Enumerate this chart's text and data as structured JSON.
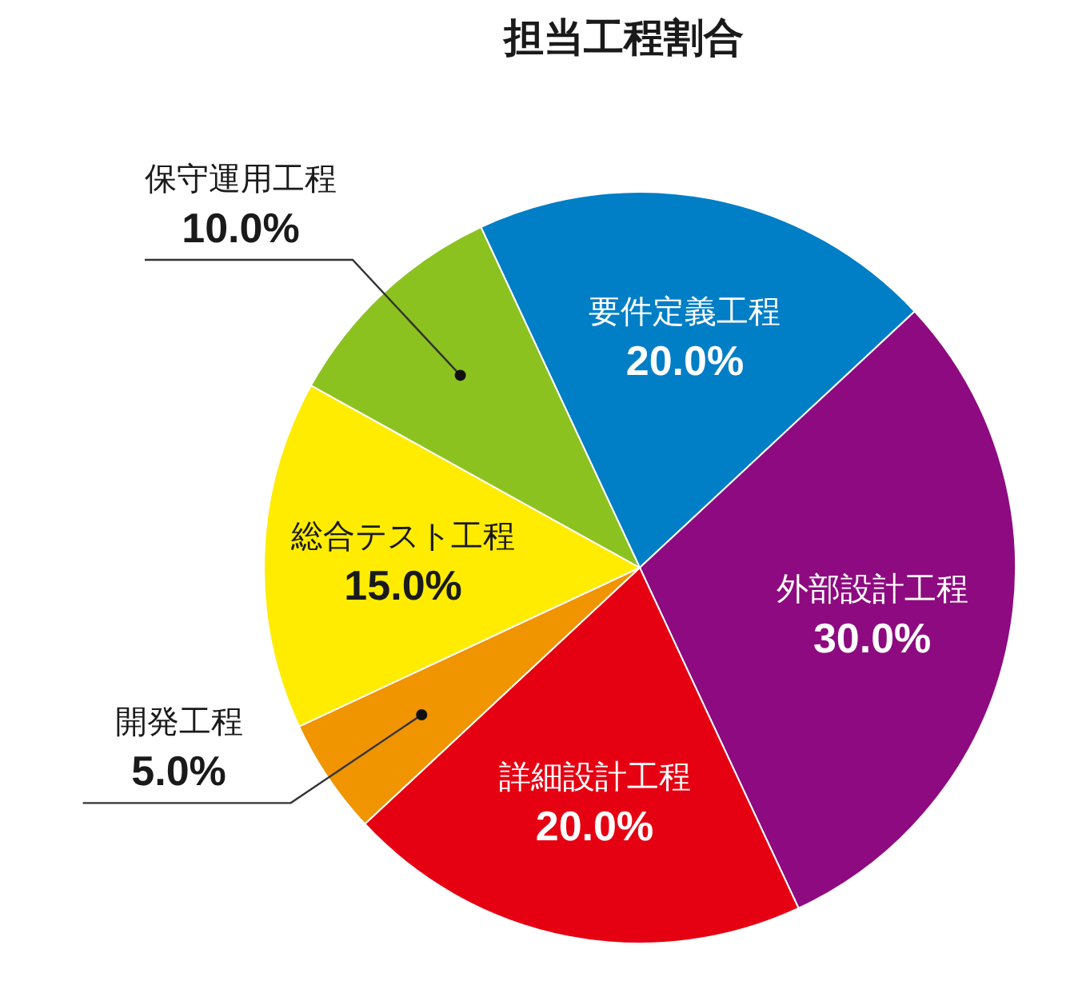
{
  "chart_data": {
    "type": "pie",
    "title": "担当工程割合",
    "categories": [
      "要件定義工程",
      "外部設計工程",
      "詳細設計工程",
      "開発工程",
      "総合テスト工程",
      "保守運用工程"
    ],
    "values": [
      20,
      30,
      20,
      5,
      15,
      10
    ],
    "colors": [
      "#007ec6",
      "#8e0a80",
      "#e50012",
      "#f09400",
      "#ffec00",
      "#8cc21f"
    ],
    "value_labels": [
      "20.0%",
      "30.0%",
      "20.0%",
      "5.0%",
      "15.0%",
      "10.0%"
    ]
  }
}
